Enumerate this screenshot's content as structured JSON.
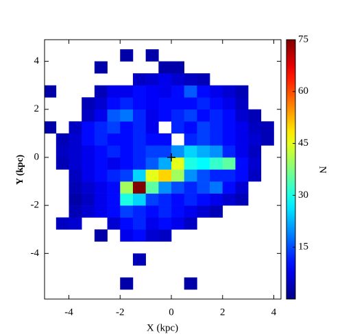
{
  "chart_data": {
    "type": "heatmap",
    "xlabel": "X (kpc)",
    "ylabel": "Y (kpc)",
    "colorbar_label": "N",
    "colormap": "jet",
    "xlim": [
      -4.95,
      4.28
    ],
    "ylim": [
      -5.9,
      4.9
    ],
    "xticks": [
      -4,
      -2,
      0,
      2,
      4
    ],
    "yticks": [
      -4,
      -2,
      0,
      2,
      4
    ],
    "clim": [
      0,
      75
    ],
    "cticks": [
      15,
      30,
      45,
      60,
      75
    ],
    "marker_x": 0,
    "marker_y": 0,
    "xedges": [
      -5,
      -4.5,
      -4,
      -3.5,
      -3,
      -2.5,
      -2,
      -1.5,
      -1,
      -0.5,
      0,
      0.5,
      1,
      1.5,
      2,
      2.5,
      3,
      3.5,
      4
    ],
    "yedges": [
      -5.5,
      -5,
      -4.5,
      -4,
      -3.5,
      -3,
      -2.5,
      -2,
      -1.5,
      -1,
      -0.5,
      0,
      0.5,
      1,
      1.5,
      2,
      2.5,
      3,
      3.5,
      4,
      4.5
    ],
    "values": [
      [
        null,
        null,
        null,
        null,
        null,
        null,
        3,
        null,
        null,
        null,
        null,
        3,
        null,
        null,
        null,
        null,
        null,
        null
      ],
      [
        null,
        null,
        null,
        null,
        null,
        null,
        null,
        null,
        null,
        null,
        null,
        null,
        null,
        null,
        null,
        null,
        null,
        null
      ],
      [
        null,
        null,
        null,
        null,
        null,
        null,
        null,
        4,
        null,
        null,
        null,
        null,
        null,
        null,
        null,
        null,
        null,
        null
      ],
      [
        null,
        null,
        null,
        null,
        null,
        null,
        null,
        null,
        null,
        null,
        null,
        null,
        null,
        null,
        null,
        null,
        null,
        null
      ],
      [
        null,
        null,
        null,
        null,
        3,
        null,
        8,
        10,
        6,
        5,
        null,
        null,
        null,
        null,
        null,
        null,
        null,
        null
      ],
      [
        null,
        5,
        6,
        null,
        null,
        6,
        10,
        12,
        8,
        10,
        8,
        5,
        null,
        null,
        null,
        null,
        null,
        null
      ],
      [
        null,
        null,
        4,
        6,
        8,
        10,
        14,
        12,
        10,
        12,
        10,
        8,
        6,
        4,
        null,
        null,
        null,
        null
      ],
      [
        null,
        null,
        3,
        5,
        8,
        10,
        30,
        25,
        14,
        12,
        10,
        12,
        10,
        8,
        6,
        4,
        null,
        null
      ],
      [
        null,
        null,
        4,
        6,
        8,
        10,
        40,
        75,
        35,
        20,
        15,
        12,
        15,
        18,
        10,
        6,
        null,
        null
      ],
      [
        null,
        null,
        5,
        8,
        10,
        12,
        14,
        25,
        45,
        50,
        40,
        20,
        15,
        12,
        12,
        10,
        5,
        null
      ],
      [
        null,
        4,
        6,
        8,
        10,
        8,
        10,
        12,
        16,
        22,
        45,
        30,
        28,
        32,
        35,
        10,
        6,
        null
      ],
      [
        null,
        5,
        6,
        8,
        10,
        12,
        10,
        12,
        14,
        14,
        20,
        25,
        22,
        20,
        12,
        8,
        5,
        null
      ],
      [
        null,
        4,
        6,
        10,
        12,
        10,
        10,
        12,
        10,
        10,
        null,
        12,
        14,
        12,
        10,
        8,
        6,
        4
      ],
      [
        3,
        null,
        5,
        10,
        12,
        14,
        10,
        12,
        8,
        null,
        12,
        10,
        14,
        12,
        10,
        8,
        5,
        4
      ],
      [
        null,
        null,
        null,
        5,
        8,
        16,
        18,
        12,
        8,
        10,
        12,
        14,
        10,
        12,
        10,
        6,
        4,
        null
      ],
      [
        null,
        null,
        null,
        4,
        6,
        10,
        12,
        10,
        9,
        10,
        10,
        10,
        12,
        10,
        8,
        5,
        null,
        null
      ],
      [
        3,
        null,
        null,
        null,
        4,
        8,
        8,
        10,
        9,
        8,
        10,
        16,
        10,
        8,
        6,
        4,
        null,
        null
      ],
      [
        null,
        null,
        null,
        null,
        null,
        null,
        null,
        5,
        6,
        8,
        6,
        5,
        4,
        null,
        null,
        null,
        null,
        null
      ],
      [
        null,
        null,
        null,
        null,
        3,
        null,
        null,
        null,
        null,
        3,
        3,
        null,
        null,
        null,
        null,
        null,
        null,
        null
      ],
      [
        null,
        null,
        null,
        null,
        null,
        null,
        3,
        null,
        3,
        null,
        null,
        null,
        null,
        null,
        null,
        null,
        null,
        null
      ]
    ]
  }
}
